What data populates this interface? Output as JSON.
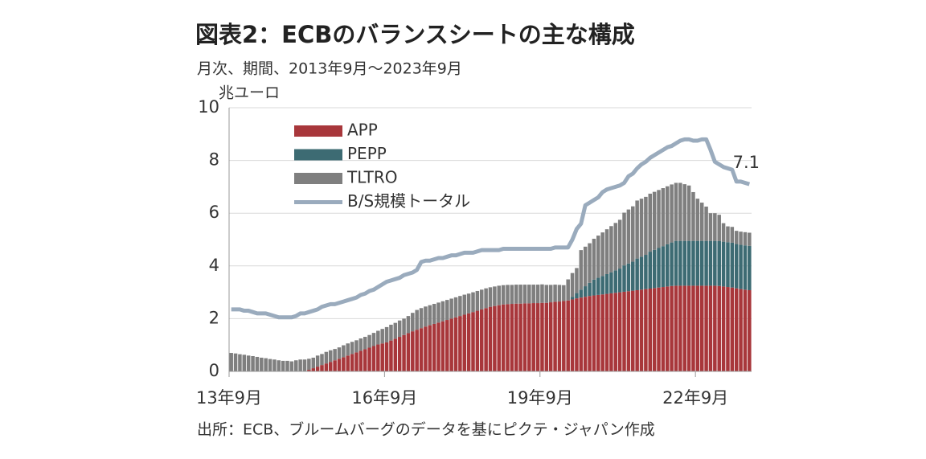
{
  "chart_data": {
    "type": "bar",
    "stacked": true,
    "grid": true,
    "legend": "upper-left",
    "title": "図表2：ECBのバランスシートの主な構成",
    "subtitle": "月次、期間、2013年9月～2023年9月",
    "ylabel": "兆ユーロ",
    "source": "出所：ECB、ブルームバーグのデータを基にピクテ・ジャパン作成",
    "ylim": [
      0,
      10
    ],
    "yticks": [
      0,
      2,
      4,
      6,
      8,
      10
    ],
    "categories": [
      "13年9月",
      null,
      null,
      null,
      null,
      null,
      null,
      null,
      null,
      null,
      null,
      null,
      null,
      null,
      null,
      null,
      null,
      null,
      null,
      null,
      null,
      null,
      null,
      null,
      null,
      null,
      null,
      null,
      null,
      null,
      null,
      null,
      null,
      null,
      null,
      null,
      "16年9月",
      null,
      null,
      null,
      null,
      null,
      null,
      null,
      null,
      null,
      null,
      null,
      null,
      null,
      null,
      null,
      null,
      null,
      null,
      null,
      null,
      null,
      null,
      null,
      null,
      null,
      null,
      null,
      null,
      null,
      null,
      null,
      null,
      null,
      null,
      null,
      "19年9月",
      null,
      null,
      null,
      null,
      null,
      null,
      null,
      null,
      null,
      null,
      null,
      null,
      null,
      null,
      null,
      null,
      null,
      null,
      null,
      null,
      null,
      null,
      null,
      null,
      null,
      null,
      null,
      null,
      null,
      null,
      null,
      null,
      null,
      null,
      null,
      "22年9月",
      null,
      null,
      null,
      null,
      null,
      null,
      null,
      null,
      null,
      null,
      null,
      null
    ],
    "series": [
      {
        "name": "APP",
        "color": "#a8373b",
        "values": [
          0,
          0,
          0,
          0,
          0,
          0,
          0,
          0,
          0,
          0,
          0,
          0,
          0,
          0,
          0,
          0,
          0,
          0,
          0.06,
          0.12,
          0.18,
          0.24,
          0.3,
          0.36,
          0.42,
          0.48,
          0.54,
          0.6,
          0.66,
          0.72,
          0.78,
          0.84,
          0.9,
          0.96,
          1.02,
          1.06,
          1.1,
          1.17,
          1.24,
          1.31,
          1.38,
          1.45,
          1.52,
          1.58,
          1.64,
          1.7,
          1.75,
          1.8,
          1.85,
          1.9,
          1.95,
          2.0,
          2.05,
          2.1,
          2.15,
          2.2,
          2.25,
          2.3,
          2.35,
          2.4,
          2.45,
          2.48,
          2.51,
          2.54,
          2.55,
          2.56,
          2.57,
          2.57,
          2.58,
          2.58,
          2.59,
          2.59,
          2.6,
          2.6,
          2.62,
          2.64,
          2.65,
          2.67,
          2.69,
          2.73,
          2.77,
          2.8,
          2.83,
          2.86,
          2.88,
          2.9,
          2.92,
          2.94,
          2.96,
          2.98,
          3.0,
          3.02,
          3.04,
          3.06,
          3.08,
          3.1,
          3.12,
          3.14,
          3.16,
          3.18,
          3.2,
          3.22,
          3.24,
          3.25,
          3.25,
          3.25,
          3.25,
          3.25,
          3.25,
          3.25,
          3.25,
          3.25,
          3.25,
          3.24,
          3.22,
          3.2,
          3.18,
          3.15,
          3.12,
          3.1,
          3.08
        ]
      },
      {
        "name": "PEPP",
        "color": "#3d6b73",
        "values": [
          0,
          0,
          0,
          0,
          0,
          0,
          0,
          0,
          0,
          0,
          0,
          0,
          0,
          0,
          0,
          0,
          0,
          0,
          0,
          0,
          0,
          0,
          0,
          0,
          0,
          0,
          0,
          0,
          0,
          0,
          0,
          0,
          0,
          0,
          0,
          0,
          0,
          0,
          0,
          0,
          0,
          0,
          0,
          0,
          0,
          0,
          0,
          0,
          0,
          0,
          0,
          0,
          0,
          0,
          0,
          0,
          0,
          0,
          0,
          0,
          0,
          0,
          0,
          0,
          0,
          0,
          0,
          0,
          0,
          0,
          0,
          0,
          0,
          0,
          0,
          0,
          0,
          0,
          0,
          0.1,
          0.2,
          0.3,
          0.4,
          0.5,
          0.6,
          0.65,
          0.7,
          0.75,
          0.8,
          0.85,
          0.9,
          1.0,
          1.05,
          1.1,
          1.2,
          1.25,
          1.3,
          1.4,
          1.45,
          1.5,
          1.55,
          1.6,
          1.65,
          1.7,
          1.7,
          1.7,
          1.7,
          1.7,
          1.7,
          1.7,
          1.7,
          1.7,
          1.7,
          1.7,
          1.7,
          1.7,
          1.7,
          1.68,
          1.68,
          1.68,
          1.68
        ]
      },
      {
        "name": "TLTRO",
        "color": "#7f7f7f",
        "values": [
          0.7,
          0.68,
          0.65,
          0.63,
          0.6,
          0.58,
          0.55,
          0.52,
          0.5,
          0.47,
          0.45,
          0.42,
          0.4,
          0.4,
          0.38,
          0.42,
          0.45,
          0.45,
          0.42,
          0.4,
          0.42,
          0.42,
          0.44,
          0.44,
          0.43,
          0.43,
          0.45,
          0.46,
          0.46,
          0.46,
          0.47,
          0.47,
          0.48,
          0.5,
          0.52,
          0.55,
          0.58,
          0.6,
          0.6,
          0.62,
          0.62,
          0.65,
          0.7,
          0.75,
          0.76,
          0.76,
          0.76,
          0.76,
          0.76,
          0.76,
          0.76,
          0.76,
          0.76,
          0.76,
          0.76,
          0.75,
          0.75,
          0.75,
          0.75,
          0.75,
          0.74,
          0.74,
          0.74,
          0.73,
          0.73,
          0.72,
          0.72,
          0.72,
          0.71,
          0.71,
          0.7,
          0.7,
          0.7,
          0.68,
          0.66,
          0.65,
          0.63,
          0.6,
          0.8,
          0.9,
          0.95,
          1.5,
          1.5,
          1.5,
          1.55,
          1.6,
          1.65,
          1.7,
          1.75,
          1.8,
          1.85,
          2.0,
          2.05,
          2.1,
          2.2,
          2.2,
          2.2,
          2.2,
          2.2,
          2.2,
          2.2,
          2.2,
          2.2,
          2.2,
          2.2,
          2.15,
          2.1,
          1.85,
          1.6,
          1.45,
          1.3,
          1.05,
          1.05,
          1.0,
          0.7,
          0.6,
          0.6,
          0.5,
          0.5,
          0.5,
          0.5
        ]
      },
      {
        "name": "B/S規模トータル",
        "color": "#9aabbd",
        "type": "line",
        "values": [
          2.35,
          2.35,
          2.35,
          2.3,
          2.3,
          2.25,
          2.2,
          2.2,
          2.2,
          2.15,
          2.1,
          2.05,
          2.05,
          2.05,
          2.05,
          2.1,
          2.2,
          2.2,
          2.25,
          2.3,
          2.35,
          2.45,
          2.5,
          2.55,
          2.55,
          2.6,
          2.65,
          2.7,
          2.75,
          2.8,
          2.9,
          2.95,
          3.05,
          3.1,
          3.2,
          3.3,
          3.4,
          3.45,
          3.5,
          3.55,
          3.65,
          3.7,
          3.75,
          3.85,
          4.15,
          4.2,
          4.2,
          4.25,
          4.3,
          4.3,
          4.35,
          4.4,
          4.4,
          4.45,
          4.5,
          4.5,
          4.5,
          4.55,
          4.6,
          4.6,
          4.6,
          4.6,
          4.6,
          4.65,
          4.65,
          4.65,
          4.65,
          4.65,
          4.65,
          4.65,
          4.65,
          4.65,
          4.65,
          4.65,
          4.65,
          4.7,
          4.7,
          4.7,
          4.7,
          5.0,
          5.4,
          5.6,
          6.3,
          6.4,
          6.5,
          6.6,
          6.8,
          6.9,
          6.95,
          7.0,
          7.05,
          7.15,
          7.4,
          7.5,
          7.7,
          7.85,
          7.95,
          8.1,
          8.2,
          8.3,
          8.4,
          8.5,
          8.55,
          8.65,
          8.75,
          8.8,
          8.8,
          8.75,
          8.75,
          8.8,
          8.8,
          8.4,
          7.95,
          7.85,
          7.75,
          7.7,
          7.65,
          7.2,
          7.2,
          7.15,
          7.1
        ]
      }
    ]
  }
}
